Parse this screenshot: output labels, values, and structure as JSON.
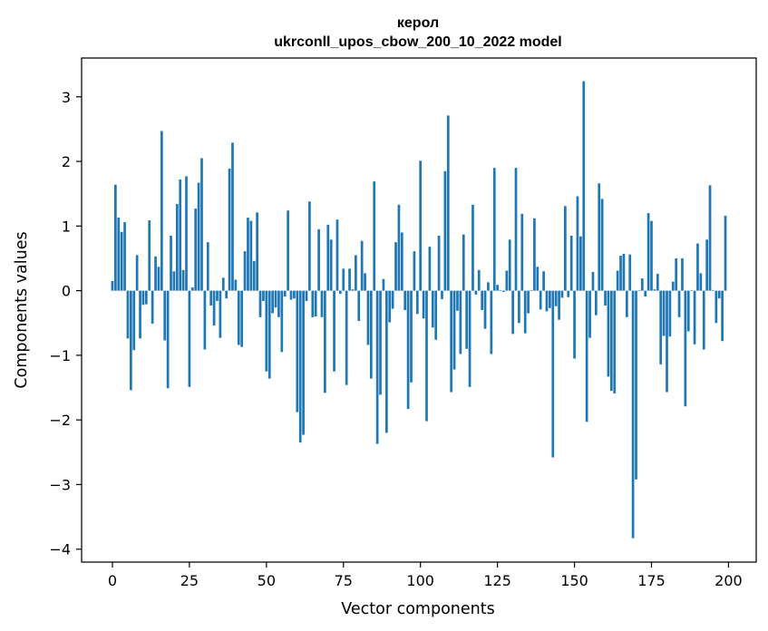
{
  "chart_data": {
    "type": "bar",
    "title": "керол",
    "subtitle": "ukrconll_upos_cbow_200_10_2022 model",
    "xlabel": "Vector components",
    "ylabel": "Components values",
    "xlim": [
      -10,
      209
    ],
    "ylim": [
      -4.2,
      3.6
    ],
    "xticks": [
      0,
      25,
      50,
      75,
      100,
      125,
      150,
      175,
      200
    ],
    "xtick_labels": [
      "0",
      "25",
      "50",
      "75",
      "100",
      "125",
      "150",
      "175",
      "200"
    ],
    "yticks": [
      -4,
      -3,
      -2,
      -1,
      0,
      1,
      2,
      3
    ],
    "ytick_labels": [
      "−4",
      "−3",
      "−2",
      "−1",
      "0",
      "1",
      "2",
      "3"
    ],
    "grid": false,
    "bar_color": "#1f77b4",
    "values": [
      0.15,
      1.64,
      1.13,
      0.91,
      1.06,
      -0.74,
      -1.54,
      -0.92,
      0.55,
      -0.74,
      -0.22,
      -0.21,
      1.09,
      -0.51,
      0.53,
      0.37,
      2.47,
      -0.77,
      -1.51,
      0.85,
      0.3,
      1.34,
      1.72,
      0.32,
      1.77,
      -1.49,
      0.05,
      1.27,
      1.67,
      2.05,
      -0.91,
      0.75,
      -0.23,
      -0.54,
      -0.16,
      -0.73,
      0.2,
      -0.12,
      1.89,
      2.29,
      0.17,
      -0.84,
      -0.87,
      0.61,
      1.13,
      1.08,
      0.46,
      1.21,
      -0.41,
      -0.16,
      -1.25,
      -1.36,
      -0.35,
      -0.26,
      -0.41,
      -0.95,
      -0.09,
      1.24,
      -0.14,
      -0.12,
      -1.88,
      -2.35,
      -2.23,
      -0.16,
      1.38,
      -0.41,
      -0.4,
      0.95,
      -0.41,
      -1.58,
      1.02,
      0.79,
      -1.25,
      1.1,
      -0.05,
      0.34,
      -1.46,
      0.34,
      0.02,
      0.55,
      -0.47,
      0.77,
      0.27,
      -0.84,
      -1.36,
      1.69,
      -2.37,
      -1.61,
      0.18,
      -2.2,
      -0.49,
      -0.28,
      0.75,
      1.33,
      0.9,
      -0.3,
      -1.83,
      -1.42,
      0.61,
      -0.36,
      2.01,
      -0.43,
      -2.02,
      0.68,
      -0.57,
      -0.76,
      0.85,
      -0.13,
      1.85,
      2.71,
      -1.57,
      -1.22,
      -0.31,
      -0.98,
      0.87,
      -0.9,
      -1.49,
      1.33,
      -0.06,
      0.32,
      -0.3,
      -0.59,
      0.13,
      -0.98,
      1.9,
      0.09,
      0.01,
      -0.02,
      0.31,
      0.79,
      -0.67,
      1.9,
      -0.5,
      1.19,
      -0.66,
      -0.35,
      0.01,
      1.12,
      0.37,
      -0.29,
      0.3,
      -0.32,
      -0.27,
      -2.58,
      -0.24,
      -0.45,
      -0.11,
      1.31,
      -0.1,
      0.85,
      -1.05,
      1.46,
      0.84,
      3.24,
      -2.03,
      -0.73,
      0.29,
      -0.38,
      1.66,
      1.42,
      -0.23,
      -1.33,
      -1.55,
      -1.59,
      0.31,
      0.54,
      0.57,
      -0.41,
      0.56,
      -3.83,
      -2.92,
      0.01,
      0.19,
      -0.09,
      1.2,
      1.08,
      0.02,
      0.26,
      -1.14,
      -0.7,
      -1.57,
      -0.71,
      0.14,
      0.5,
      -0.41,
      0.5,
      -1.79,
      -0.63,
      0.01,
      -0.83,
      0.73,
      0.27,
      -0.91,
      0.79,
      1.63,
      0.01,
      -0.5,
      -0.12,
      -0.78,
      1.16
    ]
  }
}
